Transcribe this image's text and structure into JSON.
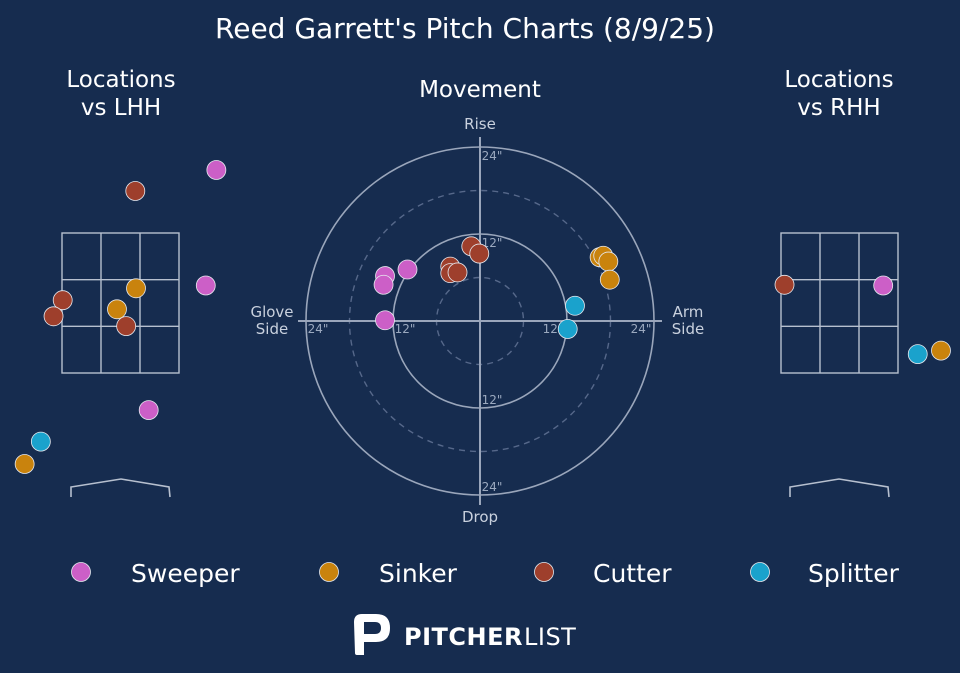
{
  "header": {
    "title": "Reed Garrett's Pitch Charts (8/9/25)"
  },
  "colors": {
    "background": "#162c4f",
    "Sweeper": "#cc5fc7",
    "Sinker": "#c9830d",
    "Cutter": "#9e3f2c",
    "Splitter": "#1aa2cc"
  },
  "legend": {
    "items": [
      "Sweeper",
      "Sinker",
      "Cutter",
      "Splitter"
    ]
  },
  "logo": {
    "brand_bold": "PITCHER",
    "brand_light": "LIST"
  },
  "chart_data": [
    {
      "type": "scatter",
      "title": "Locations\nvs LHH",
      "xlim": [
        -2.5,
        2.5
      ],
      "ylim": [
        -0.5,
        5.5
      ],
      "series": [
        {
          "name": "Sweeper",
          "points": [
            [
              1.36,
              4.4
            ],
            [
              1.21,
              2.75
            ],
            [
              0.4,
              0.97
            ]
          ]
        },
        {
          "name": "Sinker",
          "points": [
            [
              0.22,
              2.71
            ],
            [
              -0.05,
              2.41
            ],
            [
              -1.36,
              0.2
            ]
          ]
        },
        {
          "name": "Cutter",
          "points": [
            [
              0.21,
              4.1
            ],
            [
              -0.82,
              2.54
            ],
            [
              -0.95,
              2.31
            ],
            [
              0.08,
              2.17
            ]
          ]
        },
        {
          "name": "Splitter",
          "points": [
            [
              -1.13,
              0.52
            ]
          ]
        }
      ]
    },
    {
      "type": "scatter",
      "title": "Movement",
      "axes": {
        "top": "Rise",
        "bottom": "Drop",
        "left": "Glove\nSide",
        "right": "Arm\nSide"
      },
      "rings": [
        6,
        12,
        18,
        24
      ],
      "ring_labels": [
        "12\"",
        "24\""
      ],
      "xlim": [
        -24,
        24
      ],
      "ylim": [
        -24,
        24
      ],
      "series": [
        {
          "name": "Sweeper",
          "points": [
            [
              -10,
              7.1
            ],
            [
              -13.1,
              6.2
            ],
            [
              -13.3,
              5.0
            ],
            [
              -13.1,
              0.1
            ]
          ]
        },
        {
          "name": "Sinker",
          "points": [
            [
              16.5,
              8.8
            ],
            [
              17.0,
              9.0
            ],
            [
              17.7,
              8.2
            ],
            [
              17.9,
              5.7
            ]
          ]
        },
        {
          "name": "Cutter",
          "points": [
            [
              -1.2,
              10.3
            ],
            [
              -0.1,
              9.3
            ],
            [
              -4.1,
              7.5
            ],
            [
              -4.1,
              6.6
            ],
            [
              -3.1,
              6.7
            ]
          ]
        },
        {
          "name": "Splitter",
          "points": [
            [
              13.1,
              2.1
            ],
            [
              12.1,
              -1.1
            ]
          ]
        }
      ]
    },
    {
      "type": "scatter",
      "title": "Locations\nvs RHH",
      "xlim": [
        -2.5,
        2.5
      ],
      "ylim": [
        -0.5,
        5.5
      ],
      "series": [
        {
          "name": "Sweeper",
          "points": [
            [
              0.62,
              2.75
            ]
          ]
        },
        {
          "name": "Sinker",
          "points": [
            [
              1.44,
              1.82
            ]
          ]
        },
        {
          "name": "Cutter",
          "points": [
            [
              -0.78,
              2.76
            ]
          ]
        },
        {
          "name": "Splitter",
          "points": [
            [
              1.11,
              1.77
            ]
          ]
        }
      ]
    }
  ]
}
